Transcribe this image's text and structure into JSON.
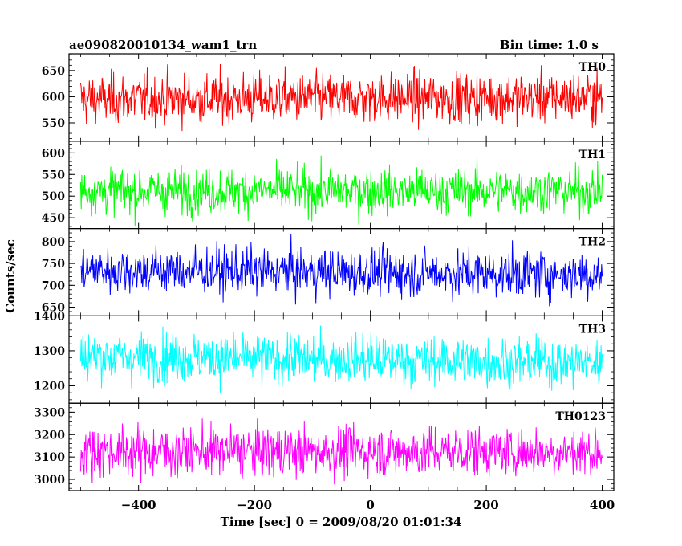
{
  "header": {
    "title": "ae090820010134_wam1_trn",
    "bin_time": "Bin time: 1.0 s"
  },
  "chart_data": {
    "type": "line",
    "xlabel": "Time [sec] 0 = 2009/08/20 01:01:34",
    "ylabel": "Counts/sec",
    "x_range": [
      -500,
      400
    ],
    "xlim": [
      -520,
      420
    ],
    "x_ticks": [
      -400,
      -200,
      0,
      200,
      400
    ],
    "x_tick_labels": [
      "−400",
      "−200",
      "0",
      "200",
      "400"
    ],
    "panels": [
      {
        "name": "TH0",
        "color": "#ff0000",
        "ylim": [
          515,
          682
        ],
        "y_ticks": [
          550,
          600,
          650
        ],
        "y_tick_labels": [
          "550",
          "600",
          "650"
        ],
        "mean": 597,
        "sigma": 24,
        "trend": [
          -2,
          2
        ]
      },
      {
        "name": "TH1",
        "color": "#00ff00",
        "ylim": [
          425,
          627
        ],
        "y_ticks": [
          450,
          500,
          550,
          600
        ],
        "y_tick_labels": [
          "450",
          "500",
          "550",
          "600"
        ],
        "mean": 512,
        "sigma": 26,
        "trend": [
          0,
          0
        ]
      },
      {
        "name": "TH2",
        "color": "#0000ff",
        "ylim": [
          630,
          830
        ],
        "y_ticks": [
          650,
          700,
          750,
          800
        ],
        "y_tick_labels": [
          "650",
          "700",
          "750",
          "800"
        ],
        "mean": 730,
        "sigma": 27,
        "trend": [
          5,
          -5
        ]
      },
      {
        "name": "TH3",
        "color": "#00ffff",
        "ylim": [
          1150,
          1400
        ],
        "y_ticks": [
          1200,
          1300,
          1400
        ],
        "y_tick_labels": [
          "1200",
          "1300",
          "1400"
        ],
        "mean": 1275,
        "sigma": 35,
        "trend": [
          10,
          -10
        ]
      },
      {
        "name": "TH0123",
        "color": "#ff00ff",
        "ylim": [
          2950,
          3340
        ],
        "y_ticks": [
          3000,
          3100,
          3200,
          3300
        ],
        "y_tick_labels": [
          "3000",
          "3100",
          "3200",
          "3300"
        ],
        "mean": 3125,
        "sigma": 55,
        "trend": [
          0,
          0
        ]
      }
    ]
  }
}
